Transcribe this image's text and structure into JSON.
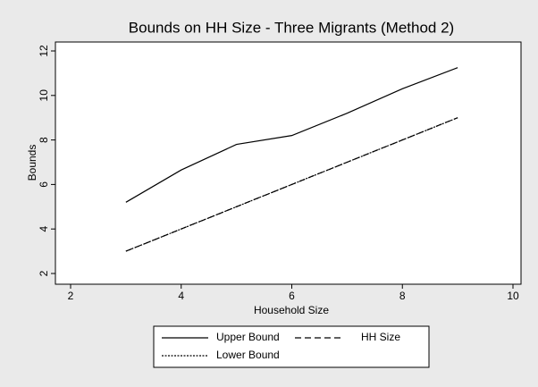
{
  "chart_data": {
    "type": "line",
    "title": "Bounds on HH Size - Three Migrants (Method 2)",
    "x_label": "Household Size",
    "y_label": "Bounds",
    "x": [
      3,
      4,
      5,
      6,
      7,
      8,
      9
    ],
    "series": [
      {
        "name": "Upper Bound",
        "color": "#000000",
        "style": "solid",
        "values": [
          5.2,
          6.65,
          7.8,
          8.2,
          9.2,
          10.3,
          11.25
        ]
      },
      {
        "name": "HH Size",
        "color": "#000000",
        "style": "dashed",
        "values": [
          3,
          4,
          5,
          6,
          7,
          8,
          9
        ]
      },
      {
        "name": "Lower Bound",
        "color": "#000000",
        "style": "dotted",
        "values": [
          3,
          4,
          5,
          6,
          7,
          8,
          9
        ]
      }
    ],
    "xlim": [
      2,
      10
    ],
    "xticks": [
      2,
      4,
      6,
      8,
      10
    ],
    "ylim": [
      2,
      12
    ],
    "yticks": [
      2,
      4,
      6,
      8,
      10,
      12
    ],
    "grid": false,
    "legend": "bottom"
  }
}
